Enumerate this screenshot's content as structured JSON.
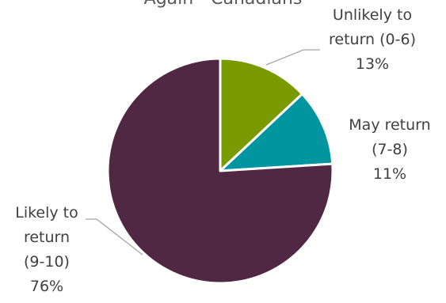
{
  "chart_data": {
    "type": "pie",
    "title": "Again - Canadians",
    "slices": [
      {
        "label_lines": [
          "Unlikely to",
          "return (0-6)"
        ],
        "percent_label": "13%",
        "value": 13,
        "color": "#7a9a01"
      },
      {
        "label_lines": [
          "May return",
          "(7-8)"
        ],
        "percent_label": "11%",
        "value": 11,
        "color": "#00959f"
      },
      {
        "label_lines": [
          "Likely to",
          "return",
          "(9-10)"
        ],
        "percent_label": "76%",
        "value": 76,
        "color": "#512843"
      }
    ]
  }
}
